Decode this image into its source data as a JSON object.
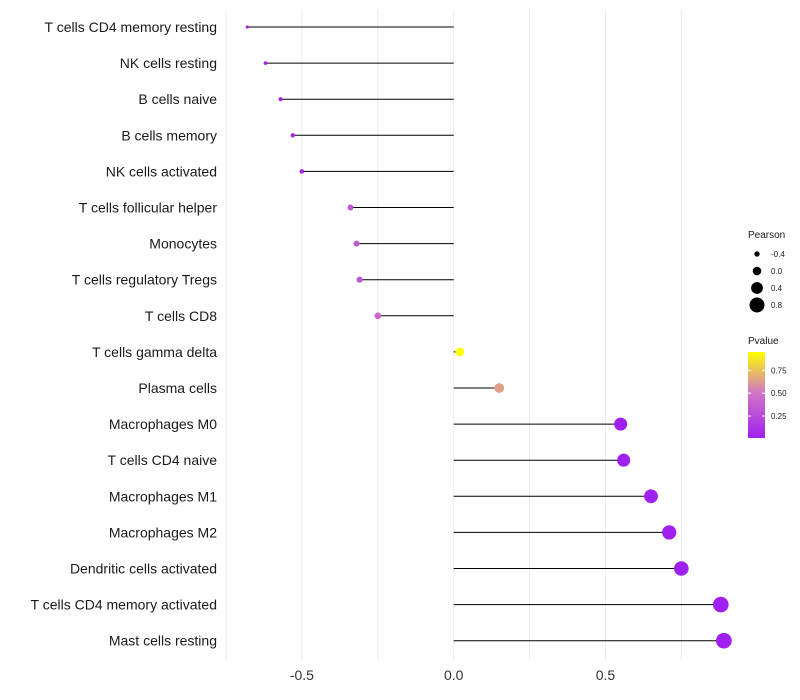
{
  "chart_data": {
    "type": "lollipop",
    "title": "",
    "xlabel": "",
    "ylabel": "",
    "xlim": [
      -0.75,
      0.93
    ],
    "xticks": [
      -0.5,
      0.0,
      0.5
    ],
    "xtick_labels": [
      "-0.5",
      "0.0",
      "0.5"
    ],
    "grid": true,
    "categories": [
      "T cells CD4 memory resting",
      "NK cells resting",
      "B cells naive",
      "B cells memory",
      "NK cells activated",
      "T cells follicular helper",
      "Monocytes",
      "T cells regulatory  Tregs",
      "T cells CD8",
      "T cells gamma delta",
      "Plasma cells",
      "Macrophages M0",
      "T cells CD4 naive",
      "Macrophages M1",
      "Macrophages M2",
      "Dendritic cells activated",
      "T cells CD4 memory activated",
      "Mast cells resting"
    ],
    "pearson": [
      -0.68,
      -0.62,
      -0.57,
      -0.53,
      -0.5,
      -0.34,
      -0.32,
      -0.31,
      -0.25,
      0.02,
      0.15,
      0.55,
      0.56,
      0.65,
      0.71,
      0.75,
      0.88,
      0.89
    ],
    "pvalue": [
      0.05,
      0.02,
      0.03,
      0.04,
      0.05,
      0.3,
      0.32,
      0.3,
      0.4,
      0.95,
      0.62,
      0.01,
      0.01,
      0.01,
      0.01,
      0.01,
      0.01,
      0.01
    ],
    "size_legend": {
      "title": "Pearson",
      "labels": [
        "-0.4",
        "0.0",
        "0.4",
        "0.8"
      ],
      "values": [
        -0.4,
        0.0,
        0.4,
        0.8
      ]
    },
    "color_legend": {
      "title": "Pvalue",
      "labels": [
        "0.75",
        "0.50",
        "0.25"
      ],
      "values": [
        0.75,
        0.5,
        0.25
      ],
      "range": [
        0.01,
        0.95
      ],
      "low_color": "#a020f0",
      "mid_color": "#d277c4",
      "high_color": "#ffff00"
    },
    "stem_color": "#000000",
    "grid_color": "#ebebeb"
  }
}
